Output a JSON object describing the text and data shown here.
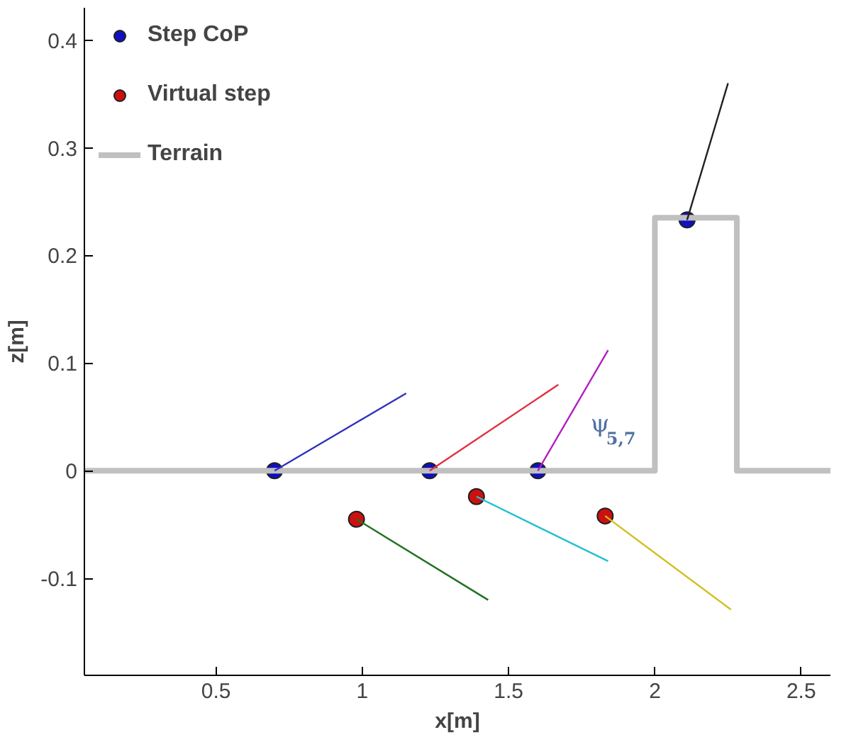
{
  "chart_data": {
    "type": "scatter",
    "xlabel": "x[m]",
    "ylabel": "z[m]",
    "xlim": [
      0.05,
      2.6
    ],
    "ylim": [
      -0.19,
      0.43
    ],
    "xticks": [
      0.5,
      1,
      1.5,
      2,
      2.5
    ],
    "yticks": [
      -0.1,
      0,
      0.1,
      0.2,
      0.3,
      0.4
    ],
    "grid": false,
    "legend": "top left",
    "series": [
      {
        "name": "Step CoP",
        "marker": "circle",
        "color": "#1010c0",
        "x": [
          0.7,
          1.23,
          1.6,
          2.11
        ],
        "values": [
          0,
          0,
          0,
          0.233
        ]
      },
      {
        "name": "Virtual step",
        "marker": "circle",
        "color": "#cc1010",
        "x": [
          0.98,
          1.39,
          1.83
        ],
        "values": [
          -0.045,
          -0.024,
          -0.042
        ]
      },
      {
        "name": "Terrain",
        "type": "line",
        "color": "#c0c0c0",
        "x": [
          0.05,
          2.0,
          2.0,
          2.28,
          2.28,
          2.6
        ],
        "values": [
          0,
          0,
          0.235,
          0.235,
          0,
          0
        ]
      },
      {
        "type": "line",
        "color": "#3030c0",
        "x": [
          0.7,
          1.15
        ],
        "values": [
          0,
          0.072
        ]
      },
      {
        "type": "line",
        "color": "#e03040",
        "x": [
          1.23,
          1.67
        ],
        "values": [
          0,
          0.08
        ]
      },
      {
        "type": "line",
        "color": "#b020c0",
        "x": [
          1.6,
          1.84
        ],
        "values": [
          0,
          0.112
        ]
      },
      {
        "type": "line",
        "color": "#202020",
        "x": [
          2.11,
          2.25
        ],
        "values": [
          0.233,
          0.36
        ]
      },
      {
        "type": "line",
        "color": "#207020",
        "x": [
          0.98,
          1.43
        ],
        "values": [
          -0.045,
          -0.12
        ]
      },
      {
        "type": "line",
        "color": "#20c0d0",
        "x": [
          1.39,
          1.84
        ],
        "values": [
          -0.024,
          -0.084
        ]
      },
      {
        "type": "line",
        "color": "#d0c020",
        "x": [
          1.83,
          2.26
        ],
        "values": [
          -0.042,
          -0.129
        ]
      }
    ],
    "annotations": [
      "ψ$_{5,7}$"
    ]
  }
}
